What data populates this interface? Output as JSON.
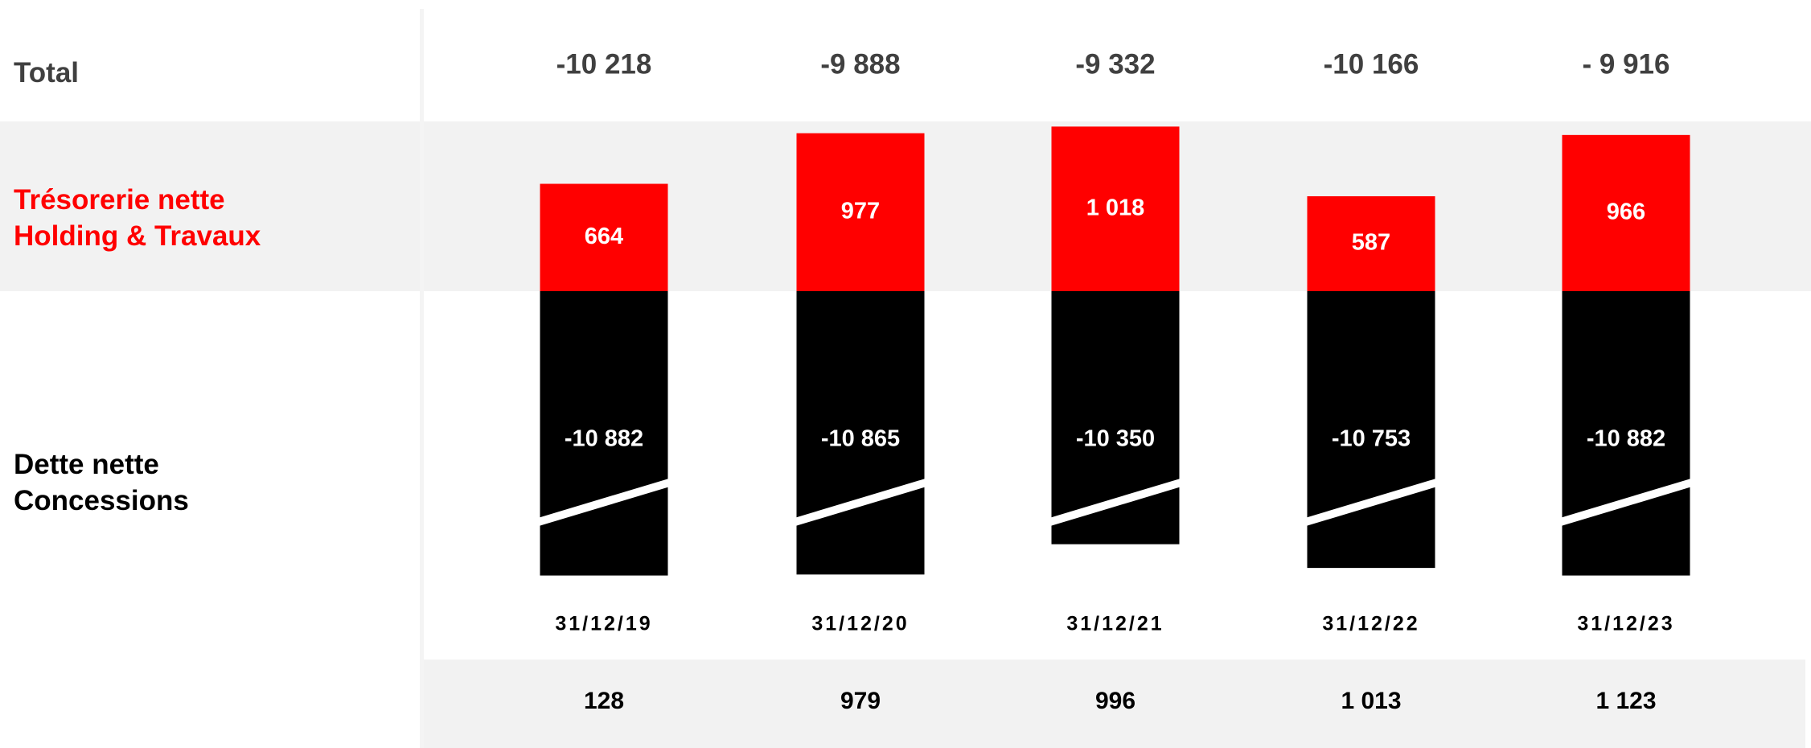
{
  "chart_data": {
    "type": "bar",
    "stacked": true,
    "categories": [
      "31/12/19",
      "31/12/20",
      "31/12/21",
      "31/12/22",
      "31/12/23"
    ],
    "totals": {
      "name": "Total",
      "values": [
        -10218,
        -9888,
        -9332,
        -10166,
        -9916
      ],
      "value_labels": [
        "-10 218",
        "-9 888",
        "-9 332",
        "-10 166",
        "- 9 916"
      ]
    },
    "series": [
      {
        "name": "Trésorerie nette\nHolding & Travaux",
        "color": "#ff0000",
        "values": [
          664,
          977,
          1018,
          587,
          966
        ],
        "value_labels": [
          "664",
          "977",
          "1 018",
          "587",
          "966"
        ]
      },
      {
        "name": "Dette nette\nConcessions",
        "color": "#000000",
        "values": [
          -10882,
          -10865,
          -10350,
          -10753,
          -10882
        ],
        "value_labels": [
          "-10 882",
          "-10 865",
          "-10 350",
          "-10 753",
          "-10 882"
        ]
      }
    ],
    "footer_values": [
      128,
      979,
      996,
      1013,
      1123
    ],
    "footer_value_labels": [
      "128",
      "979",
      "996",
      "1 013",
      "1 123"
    ]
  }
}
